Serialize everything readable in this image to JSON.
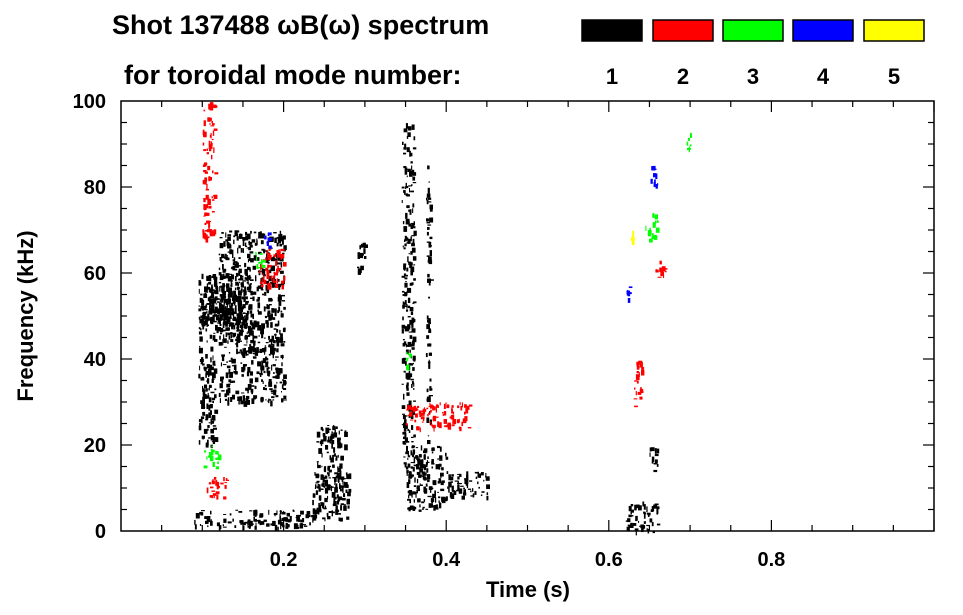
{
  "header": {
    "title_line1": "Shot 137488 ωB(ω) spectrum",
    "title_line2": "for toroidal mode number:"
  },
  "legend": [
    {
      "label": "1",
      "color": "#000000"
    },
    {
      "label": "2",
      "color": "#ff0000"
    },
    {
      "label": "3",
      "color": "#00ff00"
    },
    {
      "label": "4",
      "color": "#0000ff"
    },
    {
      "label": "5",
      "color": "#ffff00"
    }
  ],
  "chart_data": {
    "type": "heatmap",
    "title": "Shot 137488 ωB(ω) spectrum",
    "subtitle": "for toroidal mode number:",
    "xlabel": "Time (s)",
    "ylabel": "Frequency (kHz)",
    "xlim": [
      0.0,
      1.0
    ],
    "ylim": [
      0,
      100
    ],
    "xticks": [
      {
        "value": 0.2,
        "label": "0.2"
      },
      {
        "value": 0.4,
        "label": "0.4"
      },
      {
        "value": 0.6,
        "label": "0.6"
      },
      {
        "value": 0.8,
        "label": "0.8"
      }
    ],
    "yticks": [
      {
        "value": 0,
        "label": "0"
      },
      {
        "value": 20,
        "label": "20"
      },
      {
        "value": 40,
        "label": "40"
      },
      {
        "value": 60,
        "label": "60"
      },
      {
        "value": 80,
        "label": "80"
      },
      {
        "value": 100,
        "label": "100"
      }
    ],
    "grid": false,
    "legend_position": "top-right",
    "series": [
      {
        "name": "1",
        "color": "#000000",
        "blobs": [
          {
            "t0": 0.095,
            "t1": 0.115,
            "f0": 20,
            "f1": 60
          },
          {
            "t0": 0.105,
            "t1": 0.16,
            "f0": 45,
            "f1": 60
          },
          {
            "t0": 0.1,
            "t1": 0.15,
            "f0": 48,
            "f1": 58
          },
          {
            "t0": 0.12,
            "t1": 0.2,
            "f0": 30,
            "f1": 70
          },
          {
            "t0": 0.09,
            "t1": 0.24,
            "f0": 1,
            "f1": 5
          },
          {
            "t0": 0.235,
            "t1": 0.28,
            "f0": 3,
            "f1": 14
          },
          {
            "t0": 0.24,
            "t1": 0.275,
            "f0": 10,
            "f1": 25
          },
          {
            "t0": 0.29,
            "t1": 0.3,
            "f0": 60,
            "f1": 68
          },
          {
            "t0": 0.35,
            "t1": 0.4,
            "f0": 5,
            "f1": 20
          },
          {
            "t0": 0.345,
            "t1": 0.36,
            "f0": 15,
            "f1": 95
          },
          {
            "t0": 0.375,
            "t1": 0.38,
            "f0": 20,
            "f1": 85
          },
          {
            "t0": 0.4,
            "t1": 0.45,
            "f0": 8,
            "f1": 14
          },
          {
            "t0": 0.62,
            "t1": 0.66,
            "f0": 0,
            "f1": 7
          },
          {
            "t0": 0.65,
            "t1": 0.66,
            "f0": 14,
            "f1": 20
          }
        ]
      },
      {
        "name": "2",
        "color": "#ff0000",
        "blobs": [
          {
            "t0": 0.1,
            "t1": 0.115,
            "f0": 68,
            "f1": 100
          },
          {
            "t0": 0.105,
            "t1": 0.13,
            "f0": 8,
            "f1": 13
          },
          {
            "t0": 0.17,
            "t1": 0.2,
            "f0": 57,
            "f1": 66
          },
          {
            "t0": 0.35,
            "t1": 0.43,
            "f0": 24,
            "f1": 30
          },
          {
            "t0": 0.63,
            "t1": 0.64,
            "f0": 28,
            "f1": 40
          },
          {
            "t0": 0.655,
            "t1": 0.67,
            "f0": 59,
            "f1": 63
          }
        ]
      },
      {
        "name": "3",
        "color": "#00ff00",
        "blobs": [
          {
            "t0": 0.1,
            "t1": 0.12,
            "f0": 15,
            "f1": 20
          },
          {
            "t0": 0.165,
            "t1": 0.175,
            "f0": 60,
            "f1": 65
          },
          {
            "t0": 0.35,
            "t1": 0.355,
            "f0": 38,
            "f1": 42
          },
          {
            "t0": 0.645,
            "t1": 0.66,
            "f0": 68,
            "f1": 74
          },
          {
            "t0": 0.695,
            "t1": 0.7,
            "f0": 88,
            "f1": 94
          }
        ]
      },
      {
        "name": "4",
        "color": "#0000ff",
        "blobs": [
          {
            "t0": 0.62,
            "t1": 0.625,
            "f0": 52,
            "f1": 58
          },
          {
            "t0": 0.65,
            "t1": 0.66,
            "f0": 80,
            "f1": 85
          },
          {
            "t0": 0.175,
            "t1": 0.185,
            "f0": 66,
            "f1": 70
          }
        ]
      },
      {
        "name": "5",
        "color": "#ffff00",
        "blobs": [
          {
            "t0": 0.625,
            "t1": 0.63,
            "f0": 66,
            "f1": 70
          }
        ]
      }
    ]
  }
}
